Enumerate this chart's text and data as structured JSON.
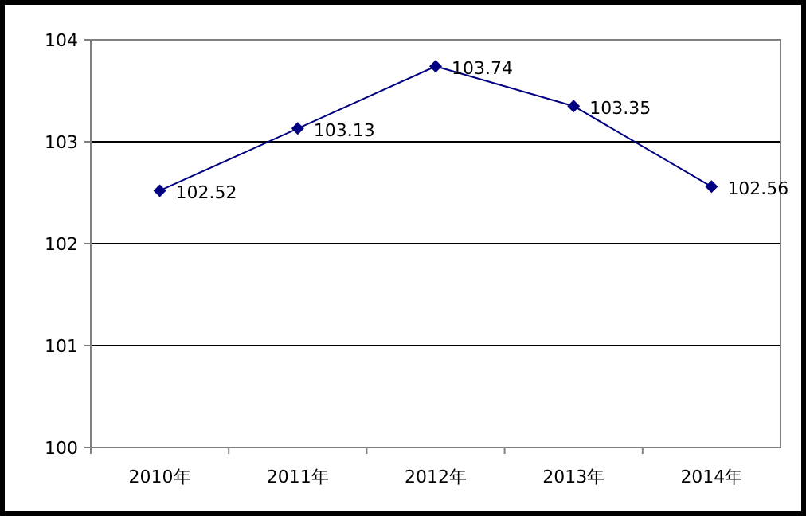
{
  "chart_data": {
    "type": "line",
    "categories": [
      "2010年",
      "2011年",
      "2012年",
      "2013年",
      "2014年"
    ],
    "series": [
      {
        "color": "#000080",
        "values": [
          102.52,
          103.13,
          103.74,
          103.35,
          102.56
        ]
      }
    ],
    "ylim": [
      100,
      104
    ],
    "yticks": [
      100,
      101,
      102,
      103,
      104
    ],
    "grid": "y",
    "marker": "diamond",
    "line_style": "solid",
    "data_labels": true
  }
}
